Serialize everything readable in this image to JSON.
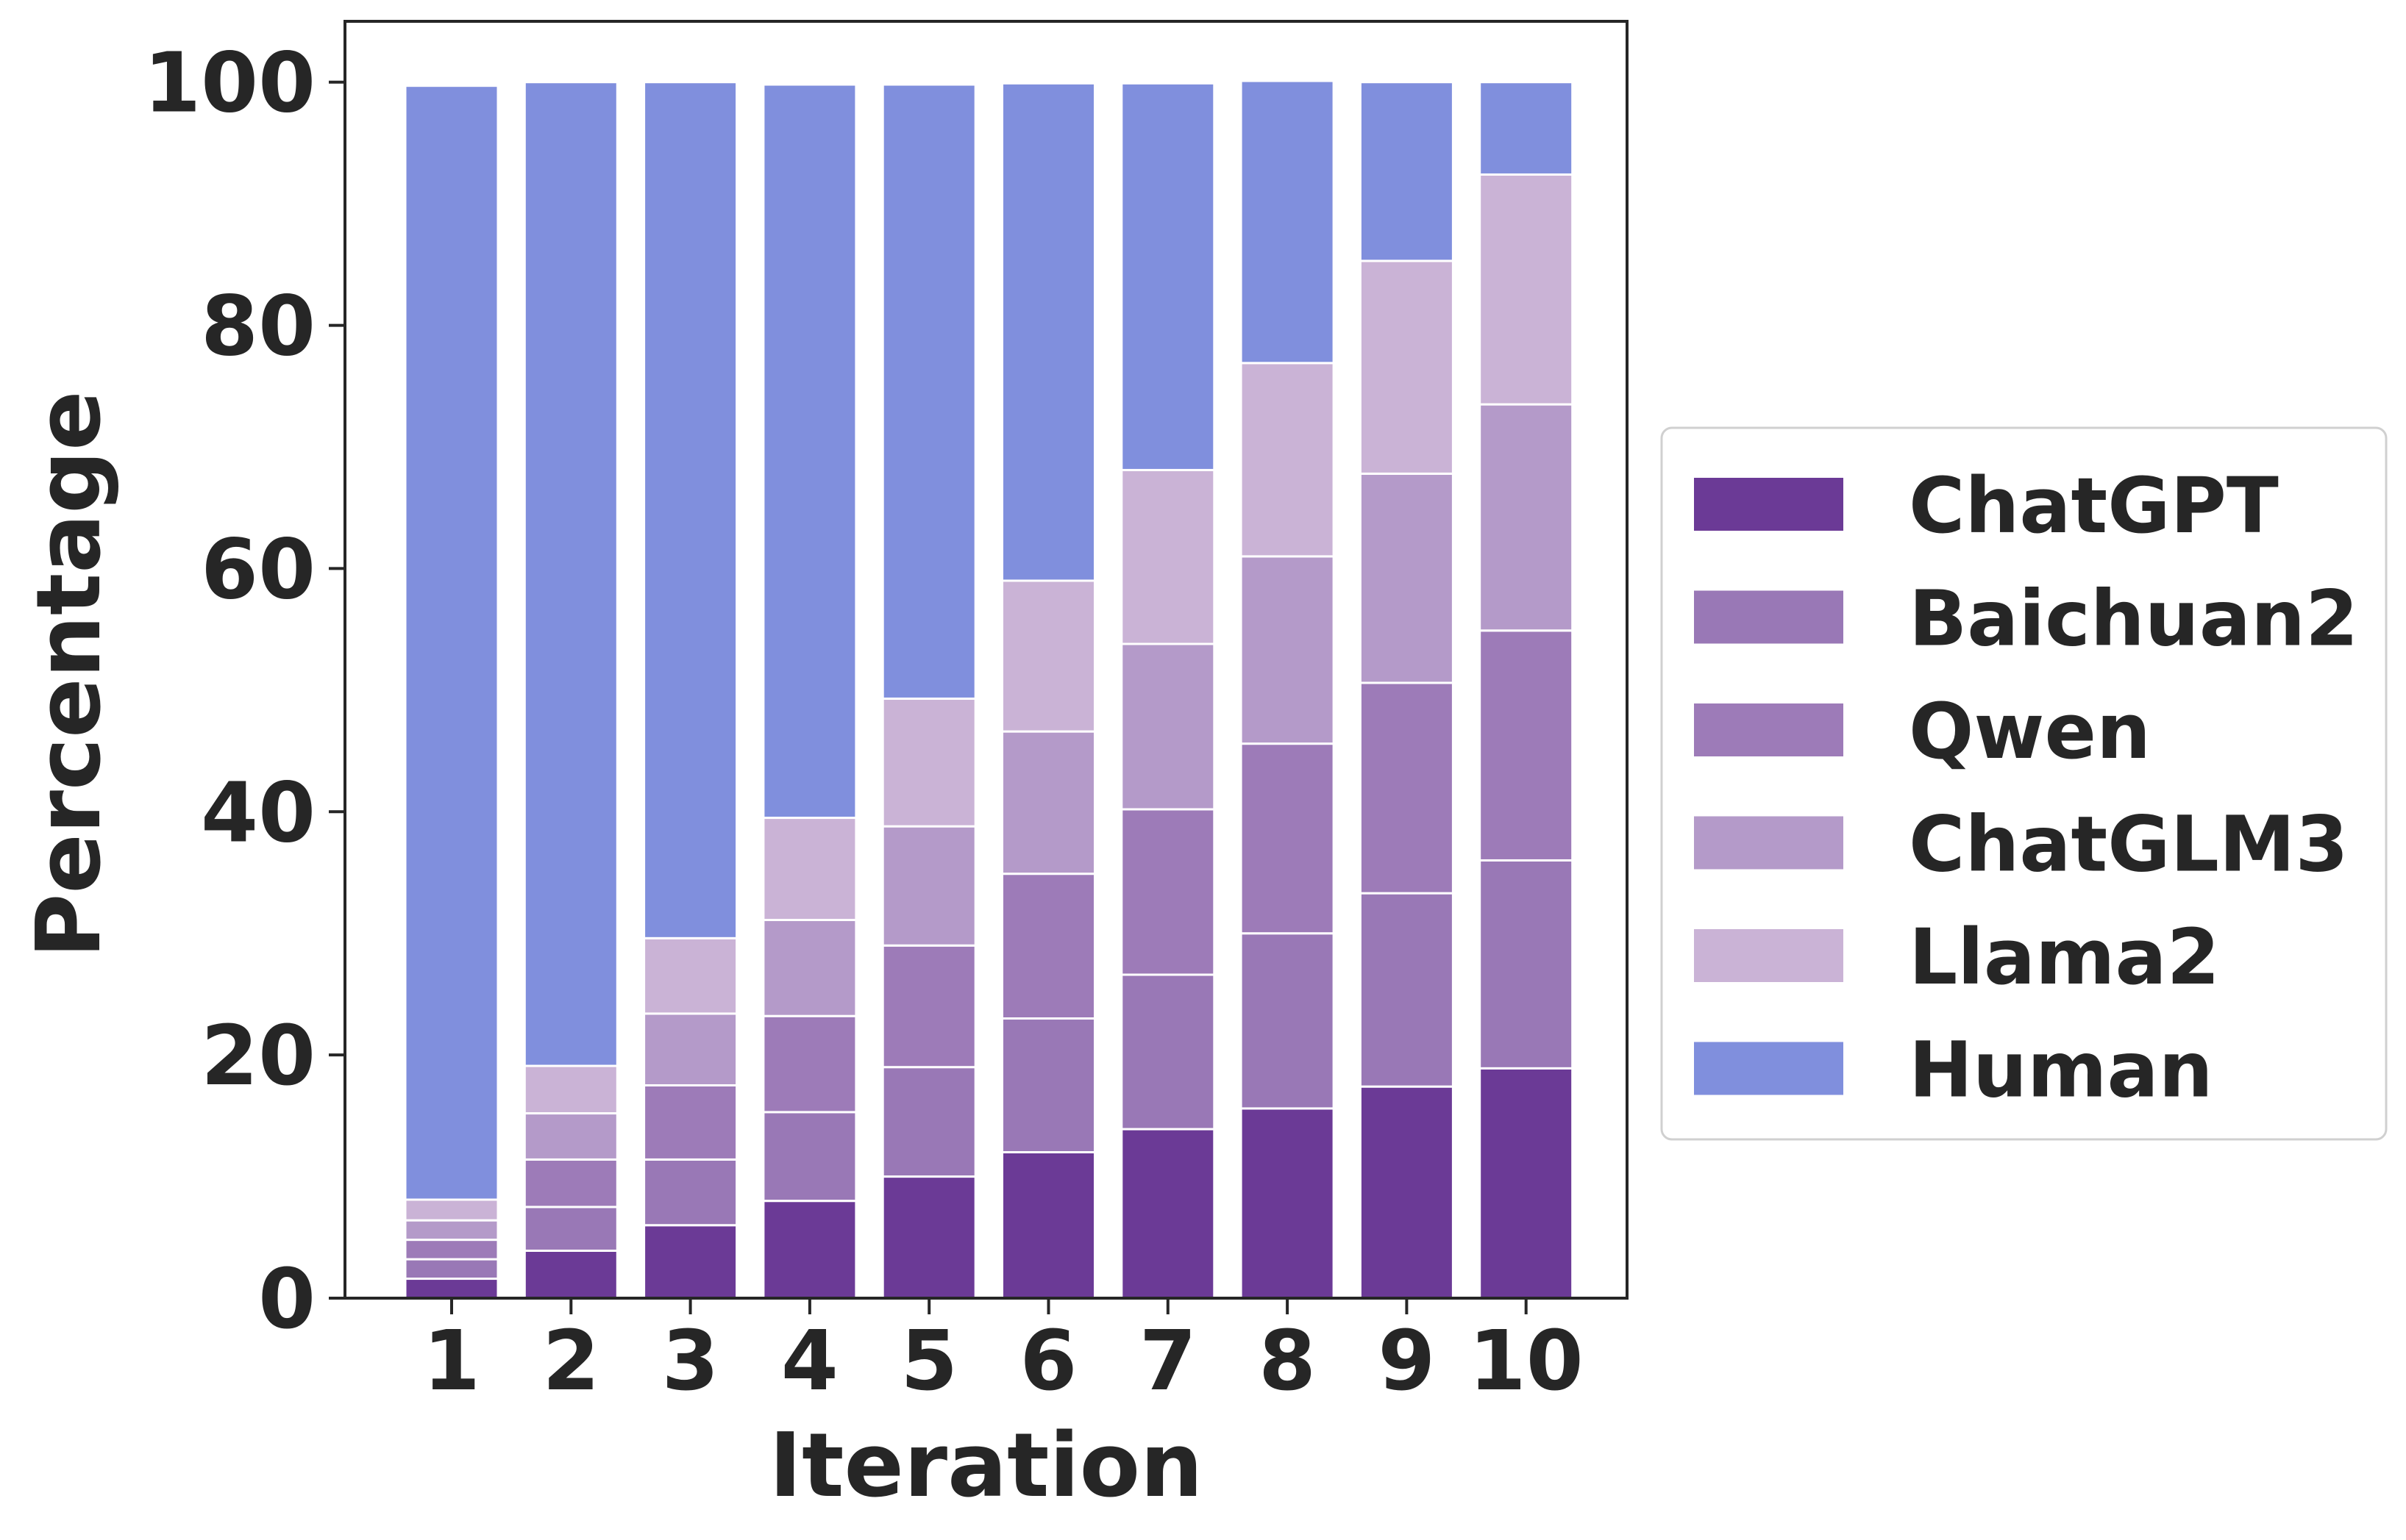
{
  "chart_data": {
    "type": "bar",
    "stacked": true,
    "title": "",
    "xlabel": "Iteration",
    "ylabel": "Percentage",
    "ylim": [
      0,
      105
    ],
    "yticks": [
      0,
      20,
      40,
      60,
      80,
      100
    ],
    "categories": [
      "1",
      "2",
      "3",
      "4",
      "5",
      "6",
      "7",
      "8",
      "9",
      "10"
    ],
    "legend_position": "right, outside",
    "grid": false,
    "series": [
      {
        "name": "ChatGPT",
        "color": "#6b3a96",
        "values": [
          1.6,
          3.9,
          6.0,
          8.0,
          10.0,
          12.0,
          13.9,
          15.6,
          17.4,
          18.9
        ]
      },
      {
        "name": "Baichuan2",
        "color": "#9978b6",
        "values": [
          1.6,
          3.6,
          5.4,
          7.3,
          9.0,
          11.0,
          12.7,
          14.4,
          15.9,
          17.1
        ]
      },
      {
        "name": "Qwen",
        "color": "#9d7bb8",
        "values": [
          1.6,
          3.9,
          6.1,
          7.9,
          10.0,
          11.9,
          13.6,
          15.6,
          17.3,
          18.9
        ]
      },
      {
        "name": "ChatGLM3",
        "color": "#b49ac9",
        "values": [
          1.6,
          3.8,
          5.9,
          7.9,
          9.8,
          11.7,
          13.6,
          15.4,
          17.2,
          18.6
        ]
      },
      {
        "name": "Llama2",
        "color": "#cab3d6",
        "values": [
          1.7,
          3.9,
          6.2,
          8.4,
          10.5,
          12.4,
          14.3,
          15.9,
          17.5,
          18.9
        ]
      },
      {
        "name": "Human",
        "color": "#808fdd",
        "values": [
          91.6,
          80.9,
          70.4,
          60.3,
          50.5,
          40.9,
          31.8,
          23.2,
          14.7,
          7.6
        ]
      }
    ]
  }
}
